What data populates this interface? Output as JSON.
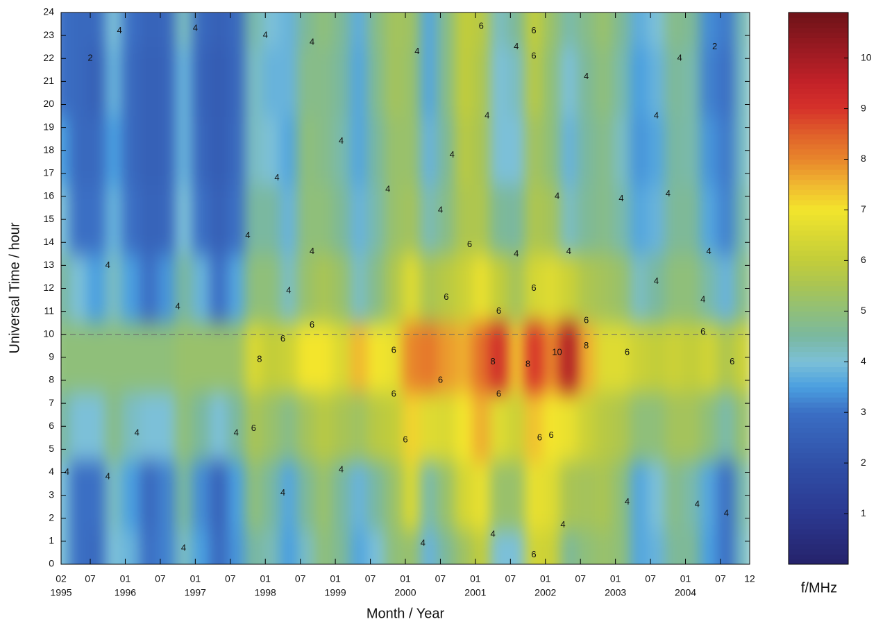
{
  "chart_data": {
    "type": "heatmap",
    "xlabel": "Month / Year",
    "ylabel": "Universal Time / hour",
    "colorbar_label": "f/MHz",
    "x": [
      "1995-02",
      "1995-05",
      "1995-08",
      "1995-11",
      "1996-02",
      "1996-05",
      "1996-08",
      "1996-11",
      "1997-02",
      "1997-05",
      "1997-08",
      "1997-11",
      "1998-02",
      "1998-05",
      "1998-08",
      "1998-11",
      "1999-02",
      "1999-05",
      "1999-08",
      "1999-11",
      "2000-02",
      "2000-05",
      "2000-08",
      "2000-11",
      "2001-02",
      "2001-05",
      "2001-08",
      "2001-11",
      "2002-02",
      "2002-05",
      "2002-08",
      "2002-11",
      "2003-02",
      "2003-05",
      "2003-08",
      "2003-11",
      "2004-02",
      "2004-05",
      "2004-08",
      "2004-11"
    ],
    "y": [
      0,
      3,
      6,
      9,
      12,
      15,
      18,
      21,
      24
    ],
    "z": [
      [
        4,
        3,
        2.8,
        4,
        3.8,
        3,
        3.2,
        4.2,
        3.5,
        2.8,
        3.4,
        4.5,
        4.3,
        3.5,
        4.2,
        5,
        4.6,
        3.6,
        4,
        5,
        5.2,
        3.8,
        4.6,
        5.3,
        6,
        4,
        4,
        6.3,
        6.2,
        4.6,
        5,
        5.2,
        5,
        3.6,
        3.8,
        4.6,
        4.6,
        3.5,
        3,
        4.2
      ],
      [
        4,
        3,
        3,
        4.2,
        3.5,
        2.8,
        3.2,
        4.5,
        3.3,
        2.6,
        3.5,
        5,
        4.5,
        3.6,
        4.6,
        5.2,
        4.5,
        3.8,
        4.5,
        5.2,
        6.5,
        4.4,
        5.2,
        6.4,
        6.8,
        5.2,
        5.2,
        6.8,
        6.6,
        5.5,
        5.4,
        5.5,
        5,
        3.6,
        4,
        4.8,
        4.4,
        3.6,
        3,
        4.4
      ],
      [
        4.5,
        4,
        4,
        4.8,
        4.2,
        4,
        4,
        5,
        4.5,
        4,
        4.5,
        5.5,
        5.2,
        4.8,
        5.4,
        5.8,
        5.5,
        5.3,
        5.8,
        6,
        7.2,
        6.6,
        6.5,
        7,
        7.6,
        6.6,
        6.2,
        7.4,
        7,
        6.8,
        6.2,
        5.8,
        5.6,
        5,
        5,
        5.4,
        5.4,
        5,
        4.4,
        5.2
      ],
      [
        5,
        5,
        5,
        5,
        5,
        5,
        5,
        5.2,
        5.2,
        5.2,
        5.2,
        6.5,
        6,
        6.2,
        7,
        7,
        6.5,
        7.5,
        7,
        6.8,
        8,
        8.2,
        7.8,
        7.6,
        8.3,
        9.2,
        7.4,
        9,
        8,
        9.8,
        7.6,
        6.6,
        6.6,
        6.2,
        6,
        6.2,
        6,
        6.3,
        5.6,
        6.2
      ],
      [
        4.5,
        4,
        3.5,
        4.2,
        3.5,
        3,
        3.4,
        4.5,
        3.8,
        3,
        3.6,
        5,
        5,
        4.2,
        5.2,
        5.5,
        5.2,
        4.2,
        4.8,
        5.6,
        6.6,
        5.5,
        5.8,
        6.2,
        6.8,
        6,
        5.4,
        6.4,
        6.6,
        6.2,
        5.6,
        5.4,
        5.2,
        4.2,
        4.5,
        5,
        5,
        4.4,
        3.8,
        4.8
      ],
      [
        4,
        3,
        3,
        3.8,
        3,
        2.6,
        2.7,
        4,
        3,
        2.5,
        3,
        4.5,
        4.5,
        3.8,
        5,
        5,
        4.6,
        3.8,
        4.4,
        5.2,
        5.4,
        4.3,
        4.8,
        5.6,
        5.6,
        4.6,
        4.5,
        5.6,
        5.4,
        4.2,
        4.6,
        4.8,
        4.4,
        3.6,
        3.8,
        4.6,
        4.6,
        3.6,
        3.2,
        4.4
      ],
      [
        3.5,
        2.8,
        2.8,
        3.5,
        2.8,
        2.5,
        2.6,
        3.8,
        2.7,
        2.4,
        2.8,
        4.2,
        4,
        3.6,
        5,
        4.8,
        4.4,
        3.6,
        4.5,
        5.2,
        5.2,
        3.8,
        4.6,
        5.8,
        5.5,
        4,
        4,
        5.4,
        5,
        3.8,
        4.5,
        4.8,
        4.2,
        3.4,
        3.6,
        4.5,
        4.4,
        3.4,
        3.1,
        4.2
      ],
      [
        3,
        2.8,
        2.5,
        3.8,
        2.8,
        2.5,
        2.6,
        3.8,
        2.6,
        2.4,
        2.7,
        4.2,
        3.8,
        3.8,
        4.8,
        4.8,
        4.5,
        3.6,
        4.7,
        5.4,
        5.2,
        3.6,
        4.8,
        6,
        5.6,
        4,
        4.2,
        5.8,
        5,
        4,
        4.6,
        5,
        4.4,
        3.5,
        3.8,
        4.6,
        4.4,
        3.2,
        3,
        4.2
      ],
      [
        3,
        2.8,
        2.8,
        4,
        3,
        2.6,
        2.7,
        4.2,
        2.8,
        2.5,
        2.8,
        4.4,
        4,
        3.8,
        4.6,
        5,
        4.6,
        3.7,
        4.8,
        5.4,
        5.3,
        3.6,
        4.8,
        6,
        5.8,
        4.2,
        4.6,
        6,
        5.2,
        4.4,
        4.8,
        5.2,
        4.6,
        3.7,
        4,
        4.8,
        4.6,
        3.3,
        3.1,
        4.3
      ]
    ],
    "xlim": [
      "1995-02",
      "2004-12"
    ],
    "ylim": [
      0,
      24
    ],
    "zlim": [
      0,
      10.9
    ],
    "xticks": [
      {
        "value": "1995-02",
        "label": "02"
      },
      {
        "value": "1995-07",
        "label": "07"
      },
      {
        "value": "1996-01",
        "label": "01"
      },
      {
        "value": "1996-07",
        "label": "07"
      },
      {
        "value": "1997-01",
        "label": "01"
      },
      {
        "value": "1997-07",
        "label": "07"
      },
      {
        "value": "1998-01",
        "label": "01"
      },
      {
        "value": "1998-07",
        "label": "07"
      },
      {
        "value": "1999-01",
        "label": "01"
      },
      {
        "value": "1999-07",
        "label": "07"
      },
      {
        "value": "2000-01",
        "label": "01"
      },
      {
        "value": "2000-07",
        "label": "07"
      },
      {
        "value": "2001-01",
        "label": "01"
      },
      {
        "value": "2001-07",
        "label": "07"
      },
      {
        "value": "2002-01",
        "label": "01"
      },
      {
        "value": "2002-07",
        "label": "07"
      },
      {
        "value": "2003-01",
        "label": "01"
      },
      {
        "value": "2003-07",
        "label": "07"
      },
      {
        "value": "2004-01",
        "label": "01"
      },
      {
        "value": "2004-07",
        "label": "07"
      },
      {
        "value": "2004-12",
        "label": "12"
      }
    ],
    "xyears": [
      {
        "value": "1995-02",
        "label": "1995"
      },
      {
        "value": "1996-01",
        "label": "1996"
      },
      {
        "value": "1997-01",
        "label": "1997"
      },
      {
        "value": "1998-01",
        "label": "1998"
      },
      {
        "value": "1999-01",
        "label": "1999"
      },
      {
        "value": "2000-01",
        "label": "2000"
      },
      {
        "value": "2001-01",
        "label": "2001"
      },
      {
        "value": "2002-01",
        "label": "2002"
      },
      {
        "value": "2003-01",
        "label": "2003"
      },
      {
        "value": "2004-01",
        "label": "2004"
      }
    ],
    "yticks": [
      0,
      1,
      2,
      3,
      4,
      5,
      6,
      7,
      8,
      9,
      10,
      11,
      12,
      13,
      14,
      15,
      16,
      17,
      18,
      19,
      20,
      21,
      22,
      23,
      24
    ],
    "zticks": [
      1,
      2,
      3,
      4,
      5,
      6,
      7,
      8,
      9,
      10
    ],
    "reference_line": 10,
    "colormap": [
      {
        "value": 0,
        "color": "#25226a"
      },
      {
        "value": 1,
        "color": "#2b3890"
      },
      {
        "value": 2,
        "color": "#3050a8"
      },
      {
        "value": 3,
        "color": "#3b6fc4"
      },
      {
        "value": 3.5,
        "color": "#4a9fe0"
      },
      {
        "value": 4,
        "color": "#7cc0d8"
      },
      {
        "value": 4.5,
        "color": "#7ab8a0"
      },
      {
        "value": 5,
        "color": "#8fbf7a"
      },
      {
        "value": 5.5,
        "color": "#a9c454"
      },
      {
        "value": 6,
        "color": "#c2cd3a"
      },
      {
        "value": 6.5,
        "color": "#d9d833"
      },
      {
        "value": 7,
        "color": "#f3e52c"
      },
      {
        "value": 7.5,
        "color": "#f0b830"
      },
      {
        "value": 8,
        "color": "#e8862b"
      },
      {
        "value": 8.5,
        "color": "#e0602a"
      },
      {
        "value": 9,
        "color": "#d6322a"
      },
      {
        "value": 9.5,
        "color": "#c42229"
      },
      {
        "value": 10,
        "color": "#a51c24"
      },
      {
        "value": 10.9,
        "color": "#6e1218"
      }
    ],
    "contour_labels": [
      {
        "x": "1995-07",
        "y": 22,
        "level": 2
      },
      {
        "x": "1995-03",
        "y": 4,
        "level": 4
      },
      {
        "x": "1995-10",
        "y": 13,
        "level": 4
      },
      {
        "x": "1995-10",
        "y": 3.8,
        "level": 4
      },
      {
        "x": "1995-12",
        "y": 23.2,
        "level": 4
      },
      {
        "x": "1996-03",
        "y": 5.7,
        "level": 4
      },
      {
        "x": "1996-10",
        "y": 11.2,
        "level": 4
      },
      {
        "x": "1996-11",
        "y": 0.7,
        "level": 4
      },
      {
        "x": "1997-01",
        "y": 23.3,
        "level": 4
      },
      {
        "x": "1997-08",
        "y": 5.7,
        "level": 4
      },
      {
        "x": "1997-10",
        "y": 14.3,
        "level": 4
      },
      {
        "x": "1997-11",
        "y": 5.9,
        "level": 6
      },
      {
        "x": "1997-12",
        "y": 8.9,
        "level": 8
      },
      {
        "x": "1998-01",
        "y": 23,
        "level": 4
      },
      {
        "x": "1998-03",
        "y": 16.8,
        "level": 4
      },
      {
        "x": "1998-04",
        "y": 9.8,
        "level": 6
      },
      {
        "x": "1998-04",
        "y": 3.1,
        "level": 4
      },
      {
        "x": "1998-05",
        "y": 11.9,
        "level": 4
      },
      {
        "x": "1998-09",
        "y": 22.7,
        "level": 4
      },
      {
        "x": "1998-09",
        "y": 13.6,
        "level": 4
      },
      {
        "x": "1998-09",
        "y": 10.4,
        "level": 6
      },
      {
        "x": "1999-02",
        "y": 4.1,
        "level": 4
      },
      {
        "x": "1999-02",
        "y": 18.4,
        "level": 4
      },
      {
        "x": "1999-10",
        "y": 16.3,
        "level": 4
      },
      {
        "x": "1999-11",
        "y": 7.4,
        "level": 6
      },
      {
        "x": "1999-11",
        "y": 9.3,
        "level": 6
      },
      {
        "x": "2000-01",
        "y": 5.4,
        "level": 6
      },
      {
        "x": "2000-03",
        "y": 22.3,
        "level": 4
      },
      {
        "x": "2000-04",
        "y": 0.9,
        "level": 4
      },
      {
        "x": "2000-07",
        "y": 8,
        "level": 6
      },
      {
        "x": "2000-07",
        "y": 15.4,
        "level": 4
      },
      {
        "x": "2000-08",
        "y": 11.6,
        "level": 6
      },
      {
        "x": "2000-09",
        "y": 17.8,
        "level": 4
      },
      {
        "x": "2000-12",
        "y": 13.9,
        "level": 6
      },
      {
        "x": "2001-02",
        "y": 23.4,
        "level": 6
      },
      {
        "x": "2001-03",
        "y": 19.5,
        "level": 4
      },
      {
        "x": "2001-04",
        "y": 8.8,
        "level": 8
      },
      {
        "x": "2001-04",
        "y": 1.3,
        "level": 4
      },
      {
        "x": "2001-05",
        "y": 7.4,
        "level": 6
      },
      {
        "x": "2001-05",
        "y": 11,
        "level": 6
      },
      {
        "x": "2001-08",
        "y": 13.5,
        "level": 4
      },
      {
        "x": "2001-08",
        "y": 22.5,
        "level": 4
      },
      {
        "x": "2001-10",
        "y": 8.7,
        "level": 8
      },
      {
        "x": "2001-11",
        "y": 23.2,
        "level": 6
      },
      {
        "x": "2001-11",
        "y": 22.1,
        "level": 6
      },
      {
        "x": "2001-11",
        "y": 12,
        "level": 6
      },
      {
        "x": "2001-12",
        "y": 5.5,
        "level": 6
      },
      {
        "x": "2001-11",
        "y": 0.4,
        "level": 6
      },
      {
        "x": "2002-02",
        "y": 5.6,
        "level": 6
      },
      {
        "x": "2002-03",
        "y": 9.2,
        "level": 10
      },
      {
        "x": "2002-03",
        "y": 16,
        "level": 4
      },
      {
        "x": "2002-04",
        "y": 1.7,
        "level": 4
      },
      {
        "x": "2002-05",
        "y": 13.6,
        "level": 4
      },
      {
        "x": "2002-08",
        "y": 9.5,
        "level": 8
      },
      {
        "x": "2002-08",
        "y": 21.2,
        "level": 4
      },
      {
        "x": "2002-08",
        "y": 10.6,
        "level": 6
      },
      {
        "x": "2003-03",
        "y": 9.2,
        "level": 6
      },
      {
        "x": "2003-02",
        "y": 15.9,
        "level": 4
      },
      {
        "x": "2003-03",
        "y": 2.7,
        "level": 4
      },
      {
        "x": "2003-08",
        "y": 12.3,
        "level": 4
      },
      {
        "x": "2003-08",
        "y": 19.5,
        "level": 4
      },
      {
        "x": "2003-10",
        "y": 16.1,
        "level": 4
      },
      {
        "x": "2003-12",
        "y": 22,
        "level": 4
      },
      {
        "x": "2004-03",
        "y": 2.6,
        "level": 4
      },
      {
        "x": "2004-04",
        "y": 10.1,
        "level": 6
      },
      {
        "x": "2004-04",
        "y": 11.5,
        "level": 4
      },
      {
        "x": "2004-05",
        "y": 13.6,
        "level": 4
      },
      {
        "x": "2004-06",
        "y": 22.5,
        "level": 2
      },
      {
        "x": "2004-08",
        "y": 2.2,
        "level": 4
      },
      {
        "x": "2004-09",
        "y": 8.8,
        "level": 6
      }
    ]
  }
}
